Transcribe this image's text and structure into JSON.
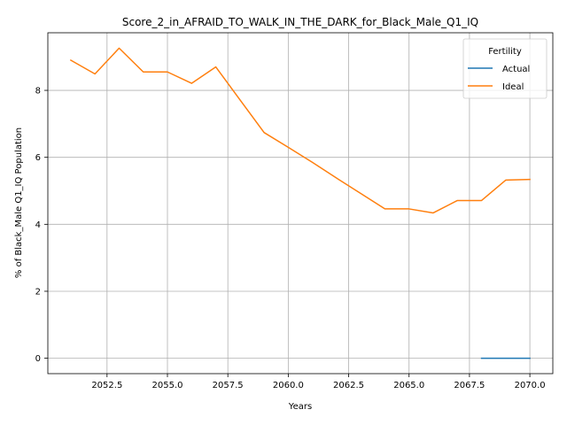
{
  "chart_data": {
    "type": "line",
    "title": "Score_2_in_AFRAID_TO_WALK_IN_THE_DARK_for_Black_Male_Q1_IQ",
    "xlabel": "Years",
    "ylabel": "% of Black_Male Q1_IQ Population",
    "xlim": [
      2050.05,
      2070.95
    ],
    "ylim": [
      -0.46,
      9.72
    ],
    "xticks": [
      2052.5,
      2055.0,
      2057.5,
      2060.0,
      2062.5,
      2065.0,
      2067.5,
      2070.0
    ],
    "xtick_labels": [
      "2052.5",
      "2055.0",
      "2057.5",
      "2060.0",
      "2062.5",
      "2065.0",
      "2067.5",
      "2070.0"
    ],
    "yticks": [
      0,
      2,
      4,
      6,
      8
    ],
    "ytick_labels": [
      "0",
      "2",
      "4",
      "6",
      "8"
    ],
    "grid": true,
    "legend": {
      "title": "Fertility",
      "position": "top-right"
    },
    "series": [
      {
        "name": "Actual",
        "color": "#1f77b4",
        "x": [
          2068,
          2069,
          2070
        ],
        "y": [
          0,
          0,
          0
        ]
      },
      {
        "name": "Ideal",
        "color": "#ff7f0e",
        "x": [
          2051,
          2052,
          2053,
          2054,
          2055,
          2056,
          2057,
          2058,
          2059,
          2060,
          2061,
          2062,
          2063,
          2064,
          2065,
          2066,
          2067,
          2068,
          2069,
          2070
        ],
        "y": [
          8.9,
          8.49,
          9.26,
          8.55,
          8.55,
          8.21,
          8.7,
          7.72,
          6.74,
          6.3,
          5.85,
          5.38,
          4.92,
          4.46,
          4.46,
          4.34,
          4.71,
          4.71,
          5.32,
          5.34
        ]
      }
    ]
  }
}
